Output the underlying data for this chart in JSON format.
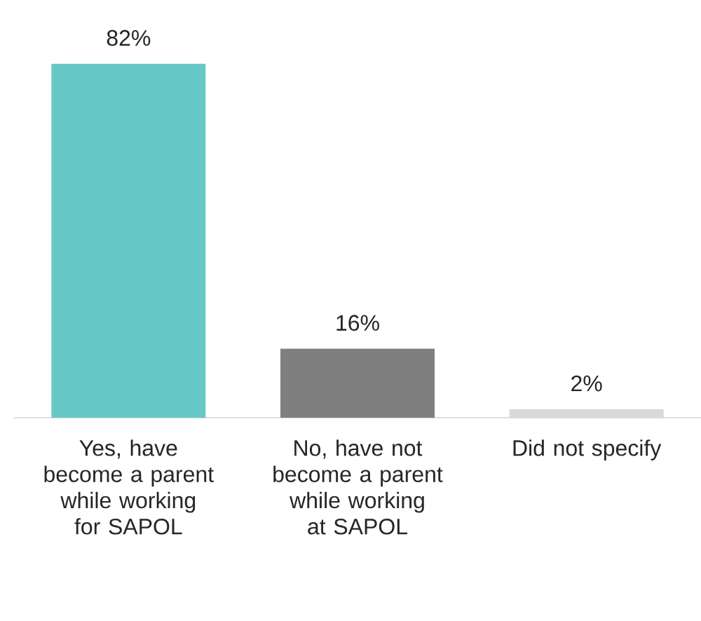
{
  "chart_data": {
    "type": "bar",
    "categories": [
      "Yes, have become a parent while working for SAPOL",
      "No, have not become a parent while working at SAPOL",
      "Did not specify"
    ],
    "values": [
      82,
      16,
      2
    ],
    "colors": [
      "#66c9c8",
      "#7f7f7f",
      "#d9d9d9"
    ],
    "value_labels": [
      "82%",
      "16%",
      "2%"
    ],
    "grid": false
  }
}
